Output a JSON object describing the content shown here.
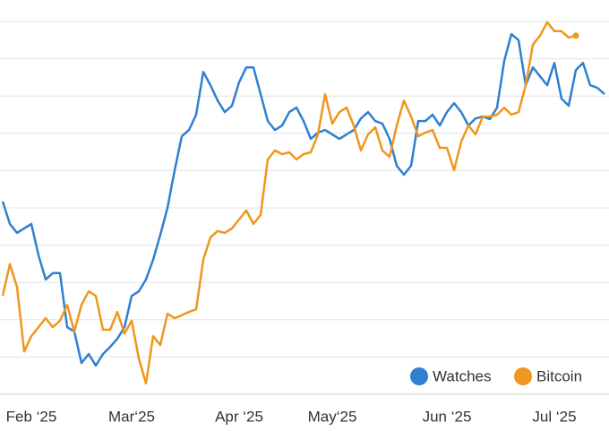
{
  "chart_data": {
    "type": "line",
    "categories": [
      null,
      null,
      null,
      null,
      "Feb ‘25",
      null,
      null,
      null,
      null,
      null,
      null,
      null,
      null,
      null,
      null,
      null,
      null,
      null,
      "Mar‘25",
      null,
      null,
      null,
      null,
      null,
      null,
      null,
      null,
      null,
      null,
      null,
      null,
      null,
      null,
      "Apr ‘25",
      null,
      null,
      null,
      null,
      null,
      null,
      null,
      null,
      null,
      null,
      null,
      null,
      "May‘25",
      null,
      null,
      null,
      null,
      null,
      null,
      null,
      null,
      null,
      null,
      null,
      null,
      null,
      null,
      null,
      "Jun ‘25",
      null,
      null,
      null,
      null,
      null,
      null,
      null,
      null,
      null,
      null,
      null,
      null,
      null,
      null,
      "Jul ‘25",
      null,
      null,
      null,
      null,
      null,
      null,
      null
    ],
    "series": [
      {
        "name": "Watches",
        "color": "#2f80d1",
        "values": [
          51.7,
          45.7,
          43.3,
          44.5,
          45.7,
          37.3,
          30.8,
          32.5,
          32.5,
          18.0,
          16.8,
          8.4,
          10.8,
          7.7,
          10.8,
          12.7,
          14.9,
          18.0,
          26.4,
          27.6,
          30.8,
          36.1,
          42.8,
          50.0,
          60.1,
          69.2,
          70.9,
          75.0,
          86.5,
          82.9,
          78.8,
          75.7,
          77.4,
          83.7,
          87.7,
          87.7,
          80.5,
          73.3,
          70.9,
          72.1,
          75.7,
          76.9,
          73.3,
          68.5,
          70.2,
          70.9,
          69.7,
          68.5,
          69.7,
          70.9,
          74.0,
          75.7,
          73.3,
          72.6,
          68.5,
          61.3,
          58.9,
          61.3,
          73.3,
          73.3,
          75.0,
          72.1,
          75.7,
          78.1,
          75.7,
          72.1,
          74.0,
          74.5,
          73.8,
          76.9,
          89.4,
          96.6,
          95.0,
          82.9,
          87.7,
          85.3,
          82.9,
          88.9,
          79.3,
          77.4,
          87.0,
          88.9,
          82.9,
          82.2,
          80.5
        ]
      },
      {
        "name": "Bitcoin",
        "color": "#f0961e",
        "values": [
          26.4,
          34.9,
          28.8,
          11.5,
          15.6,
          18.0,
          20.4,
          18.0,
          19.7,
          24.0,
          16.8,
          24.0,
          27.6,
          26.4,
          17.3,
          17.3,
          22.1,
          16.3,
          19.7,
          9.6,
          2.9,
          15.6,
          13.2,
          21.6,
          20.4,
          21.2,
          22.1,
          22.8,
          36.1,
          42.1,
          43.8,
          43.3,
          44.5,
          46.9,
          49.3,
          45.7,
          48.1,
          63.0,
          65.4,
          64.4,
          64.9,
          63.0,
          64.4,
          64.9,
          69.7,
          80.5,
          72.6,
          75.7,
          76.9,
          72.1,
          65.4,
          69.7,
          71.6,
          65.4,
          63.7,
          72.1,
          78.8,
          74.5,
          69.2,
          70.2,
          70.9,
          66.1,
          66.1,
          60.1,
          67.8,
          72.1,
          69.7,
          74.5,
          74.5,
          75.0,
          76.9,
          75.0,
          75.7,
          82.9,
          93.8,
          96.2,
          99.8,
          97.4,
          97.4,
          95.7,
          96.2,
          null,
          null,
          null,
          null
        ]
      }
    ],
    "ylim": [
      0,
      100
    ],
    "yticks": [
      0,
      10,
      20,
      30,
      40,
      50,
      60,
      70,
      80,
      90,
      100
    ],
    "grid": true,
    "legend": "bottom-right"
  }
}
